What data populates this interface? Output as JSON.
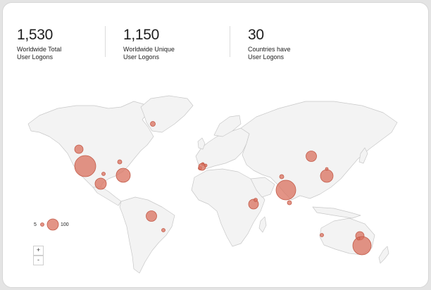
{
  "stats": [
    {
      "value": "1,530",
      "label": "Worldwide Total\nUser Logons"
    },
    {
      "value": "1,150",
      "label": "Worldwide Unique\nUser Logons"
    },
    {
      "value": "30",
      "label": "Countries have\nUser Logons"
    }
  ],
  "legend": {
    "min": "5",
    "max": "100"
  },
  "zoom": {
    "in": "+",
    "out": "-"
  },
  "colors": {
    "bubble": "#d9705e",
    "bubble_stroke": "#c25a48",
    "land": "#f3f3f3",
    "border": "#c8c8c8"
  }
}
